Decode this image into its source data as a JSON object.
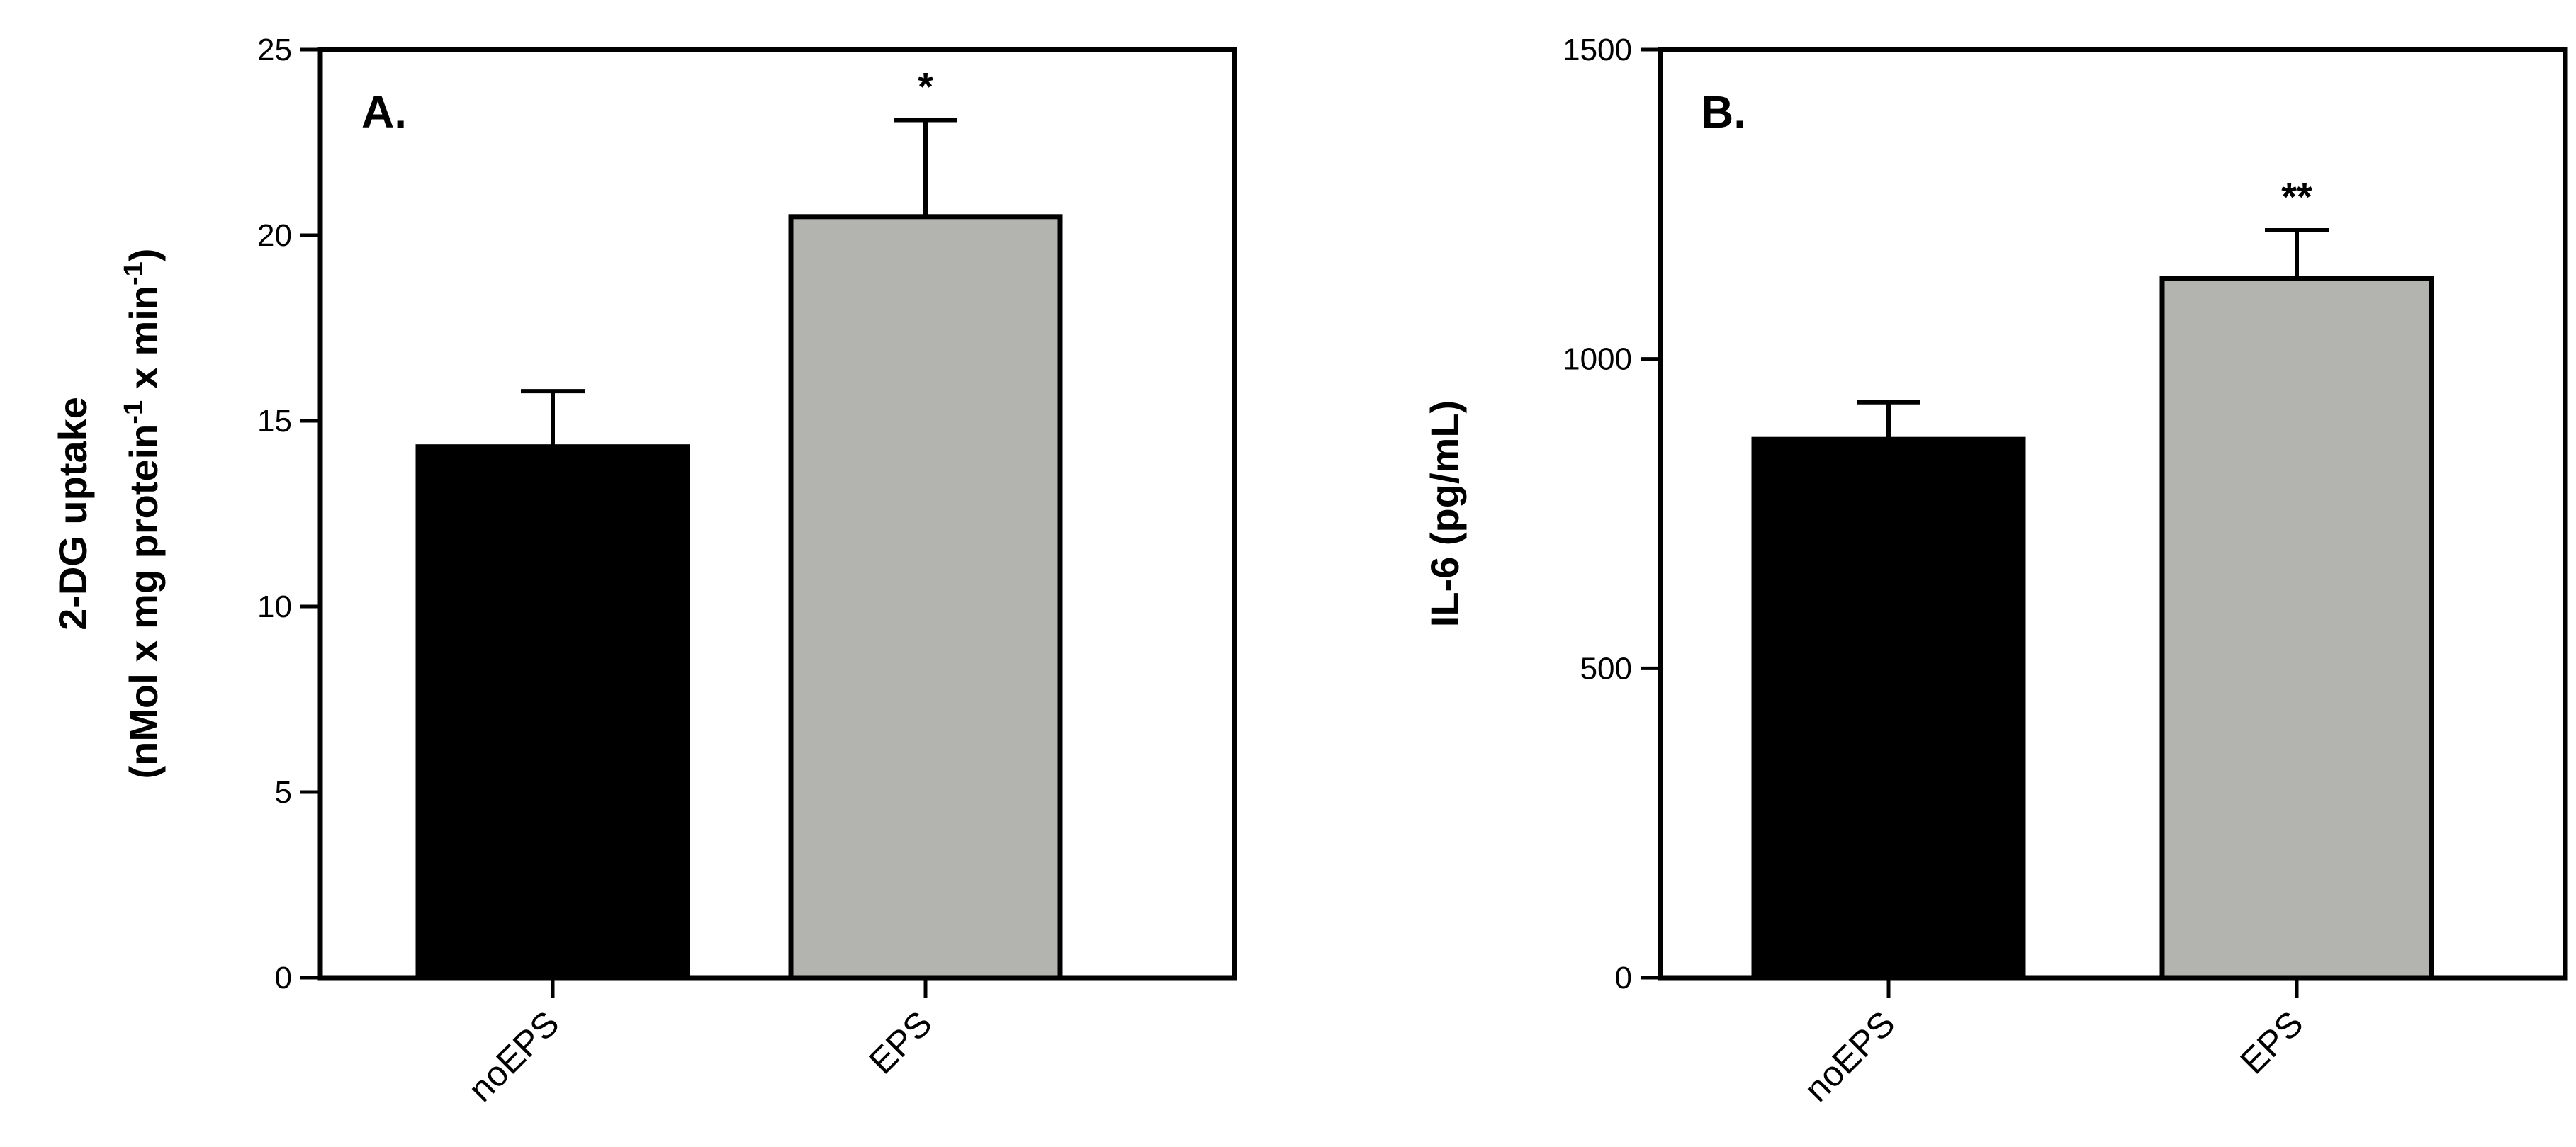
{
  "chart_data": [
    {
      "type": "bar",
      "panel_label": "A.",
      "categories": [
        "noEPS",
        "EPS"
      ],
      "values": [
        14.3,
        20.5
      ],
      "errors": [
        1.5,
        2.6
      ],
      "significance": [
        "",
        "*"
      ],
      "bar_colors": [
        "#000000",
        "#b3b3b0"
      ],
      "ylabel_line1": "2-DG uptake",
      "ylabel_line2_parts": [
        "(nMol x mg protein",
        "-1",
        " x min",
        "-1",
        ")"
      ],
      "ylim": [
        0,
        25
      ],
      "yticks": [
        0,
        5,
        10,
        15,
        20,
        25
      ],
      "grid": false
    },
    {
      "type": "bar",
      "panel_label": "B.",
      "categories": [
        "noEPS",
        "EPS"
      ],
      "values": [
        870,
        1130
      ],
      "errors": [
        60,
        78
      ],
      "significance": [
        "",
        "**"
      ],
      "bar_colors": [
        "#000000",
        "#b3b3b0"
      ],
      "ylabel": "IL-6 (pg/mL)",
      "ylim": [
        0,
        1500
      ],
      "yticks": [
        0,
        500,
        1000,
        1500
      ],
      "grid": false
    }
  ]
}
